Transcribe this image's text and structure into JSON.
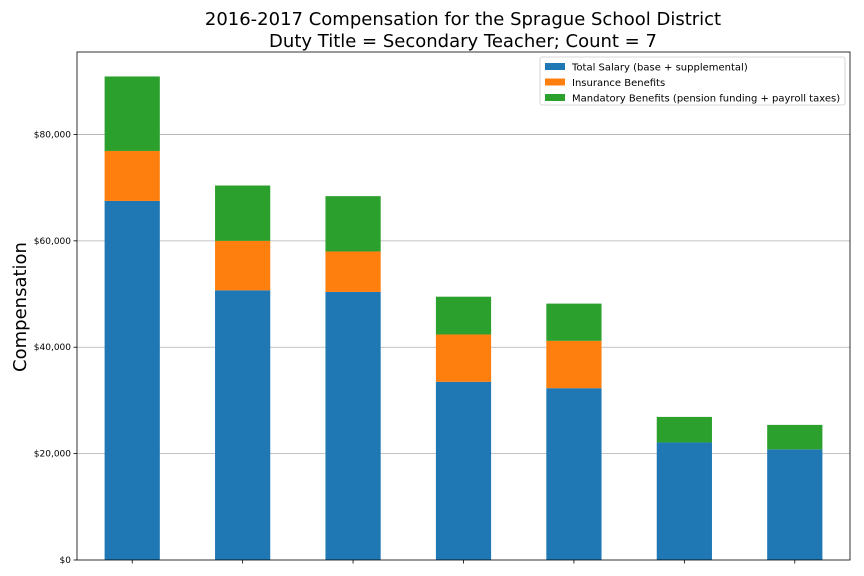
{
  "chart_data": {
    "type": "bar",
    "stacked": true,
    "title": "2016-2017 Compensation for the Sprague School District",
    "subtitle": "Duty Title = Secondary Teacher; Count = 7",
    "xlabel": "",
    "ylabel": "Compensation",
    "ylim": [
      0,
      95500
    ],
    "yticks": [
      0,
      20000,
      40000,
      60000,
      80000
    ],
    "ytick_labels": [
      "$0",
      "$20,000",
      "$40,000",
      "$60,000",
      "$80,000"
    ],
    "grid": "y",
    "legend_position": "top-right",
    "categories": [
      "",
      "",
      "",
      "",
      "",
      "",
      ""
    ],
    "series": [
      {
        "name": "Total Salary (base + supplemental)",
        "color": "#1f77b4",
        "values": [
          67500,
          50700,
          50400,
          33500,
          32300,
          22100,
          20800
        ]
      },
      {
        "name": "Insurance Benefits",
        "color": "#ff7f0e",
        "values": [
          9400,
          9300,
          7600,
          8900,
          8900,
          0,
          0
        ]
      },
      {
        "name": "Mandatory Benefits (pension funding + payroll taxes)",
        "color": "#2ca02c",
        "values": [
          14000,
          10400,
          10400,
          7100,
          7000,
          4800,
          4600
        ]
      }
    ]
  }
}
